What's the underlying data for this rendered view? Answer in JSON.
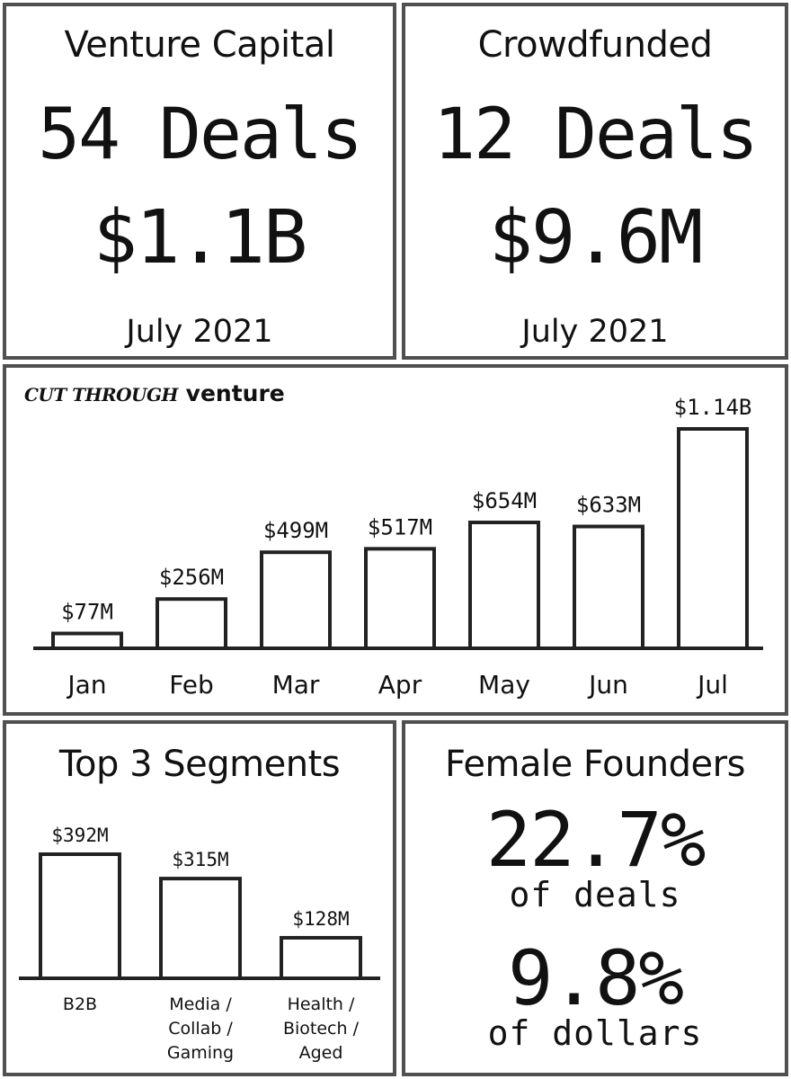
{
  "venture_capital": {
    "title": "Venture Capital",
    "deals": "54 Deals",
    "amount": "$1.1B",
    "period": "July 2021"
  },
  "crowdfunded": {
    "title": "Crowdfunded",
    "deals": "12 Deals",
    "amount": "$9.6M",
    "period": "July 2021"
  },
  "monthly": {
    "title_script": "Cut through",
    "title_bold": "venture"
  },
  "segments": {
    "title": "Top 3 Segments"
  },
  "female_founders": {
    "title": "Female Founders",
    "deals_pct": "22.7%",
    "deals_label": "of deals",
    "dollars_pct": "9.8%",
    "dollars_label": "of dollars"
  },
  "chart_data": [
    {
      "type": "bar",
      "categories": [
        "Jan",
        "Feb",
        "Mar",
        "Apr",
        "May",
        "Jun",
        "Jul"
      ],
      "values": [
        77,
        256,
        499,
        517,
        654,
        633,
        1140
      ],
      "value_labels": [
        "$77M",
        "$256M",
        "$499M",
        "$517M",
        "$654M",
        "$633M",
        "$1.14B"
      ],
      "ylim": [
        0,
        1140
      ],
      "grid": false
    },
    {
      "type": "bar",
      "title": "Top 3 Segments",
      "categories": [
        "B2B",
        "Media / Collab / Gaming",
        "Health / Biotech / Aged"
      ],
      "category_lines": [
        [
          "B2B"
        ],
        [
          "Media /",
          "Collab /",
          "Gaming"
        ],
        [
          "Health /",
          "Biotech /",
          "Aged"
        ]
      ],
      "values": [
        392,
        315,
        128
      ],
      "value_labels": [
        "$392M",
        "$315M",
        "$128M"
      ],
      "ylim": [
        0,
        392
      ],
      "grid": false
    }
  ]
}
